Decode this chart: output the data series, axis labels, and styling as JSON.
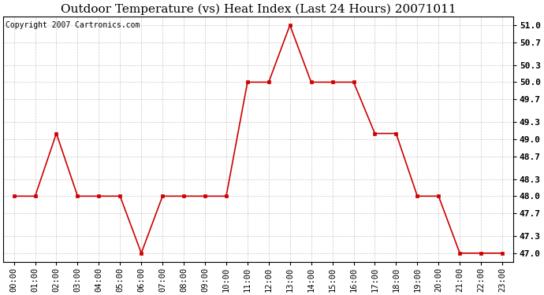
{
  "title": "Outdoor Temperature (vs) Heat Index (Last 24 Hours) 20071011",
  "copyright_text": "Copyright 2007 Cartronics.com",
  "x_labels": [
    "00:00",
    "01:00",
    "02:00",
    "03:00",
    "04:00",
    "05:00",
    "06:00",
    "07:00",
    "08:00",
    "09:00",
    "10:00",
    "11:00",
    "12:00",
    "13:00",
    "14:00",
    "15:00",
    "16:00",
    "17:00",
    "18:00",
    "19:00",
    "20:00",
    "21:00",
    "22:00",
    "23:00"
  ],
  "y_values": [
    48.0,
    48.0,
    49.1,
    48.0,
    48.0,
    48.0,
    47.0,
    48.0,
    48.0,
    48.0,
    48.0,
    50.0,
    50.0,
    51.0,
    50.0,
    50.0,
    50.0,
    49.1,
    49.1,
    48.0,
    48.0,
    47.0,
    47.0,
    47.0
  ],
  "y_ticks": [
    47.0,
    47.3,
    47.7,
    48.0,
    48.3,
    48.7,
    49.0,
    49.3,
    49.7,
    50.0,
    50.3,
    50.7,
    51.0
  ],
  "y_min": 46.85,
  "y_max": 51.15,
  "line_color": "#cc0000",
  "marker_color": "#cc0000",
  "grid_color": "#bbbbbb",
  "background_color": "#ffffff",
  "title_fontsize": 11,
  "copyright_fontsize": 7,
  "tick_fontsize": 7.5,
  "ytick_fontsize": 8
}
